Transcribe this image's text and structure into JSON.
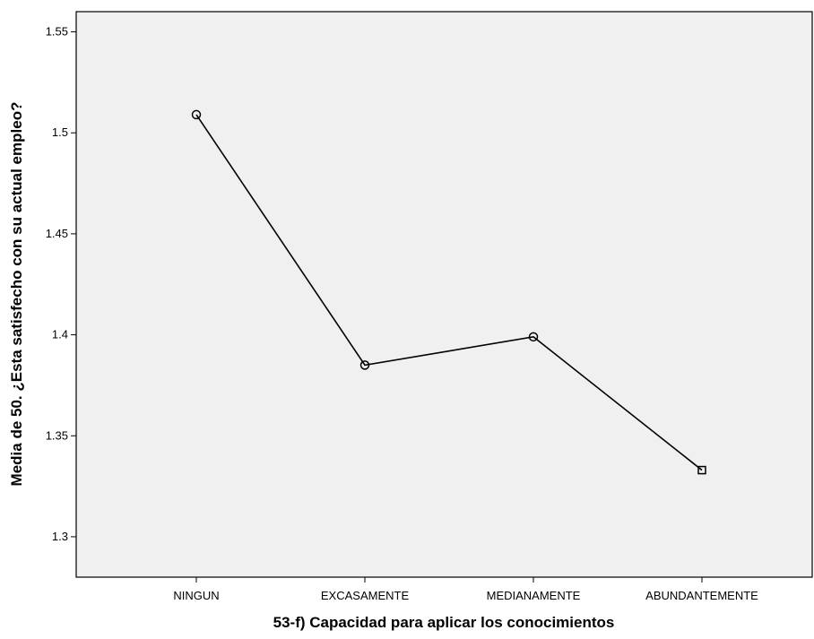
{
  "chart_data": {
    "type": "line",
    "categories": [
      "NINGUN",
      "EXCASAMENTE",
      "MEDIANAMENTE",
      "ABUNDANTEMENTE"
    ],
    "series": [
      {
        "values": [
          1.509,
          1.385,
          1.399,
          1.333
        ]
      }
    ],
    "xlabel": "53-f) Capacidad para aplicar los conocimientos",
    "ylabel": "Media de 50. ¿Esta satisfecho con su actual empleo?",
    "ylim": [
      1.28,
      1.56
    ],
    "yticks": [
      1.3,
      1.35,
      1.4,
      1.45,
      1.5,
      1.55
    ],
    "ytick_labels": [
      "1.3",
      "1.35",
      "1.4",
      "1.45",
      "1.5",
      "1.55"
    ],
    "grid": false,
    "legend": "none",
    "colors": {
      "plot_background": "#f0f0f0",
      "line": "#000000",
      "page_background": "#ffffff"
    }
  }
}
